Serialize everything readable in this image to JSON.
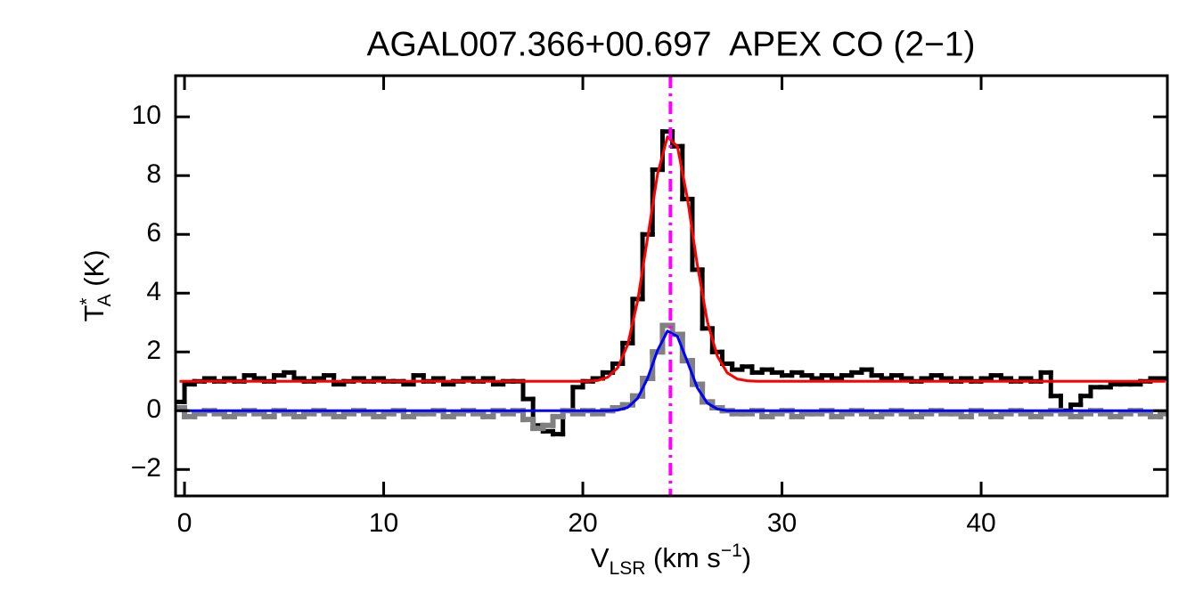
{
  "chart_data": {
    "type": "line",
    "title": "AGAL007.366+00.697  APEX CO (2−1)",
    "xlabel": {
      "main": "V",
      "sub": "LSR",
      "unit": " (km s",
      "sup": "−1",
      "close": ")"
    },
    "ylabel": {
      "main": "T",
      "sup": "*",
      "sub": "A",
      "unit": " (K)"
    },
    "xlim": [
      -0.45,
      49.35
    ],
    "ylim": [
      -2.9,
      11.4
    ],
    "xticks": [
      0,
      10,
      20,
      30,
      40
    ],
    "yticks": [
      {
        "value": -2,
        "label": "−2"
      },
      0,
      2,
      4,
      6,
      8,
      10
    ],
    "vline": {
      "x": 24.4,
      "color": "#ff00ff"
    },
    "x": [
      -0.25,
      0.25,
      0.75,
      1.25,
      1.75,
      2.25,
      2.75,
      3.25,
      3.75,
      4.25,
      4.75,
      5.25,
      5.75,
      6.25,
      6.75,
      7.25,
      7.75,
      8.25,
      8.75,
      9.25,
      9.75,
      10.25,
      10.75,
      11.25,
      11.75,
      12.25,
      12.75,
      13.25,
      13.75,
      14.25,
      14.75,
      15.25,
      15.75,
      16.25,
      16.75,
      17.25,
      17.75,
      18.25,
      18.75,
      19.25,
      19.75,
      20.25,
      20.75,
      21.25,
      21.75,
      22.25,
      22.75,
      23.25,
      23.75,
      24.25,
      24.75,
      25.25,
      25.75,
      26.25,
      26.75,
      27.25,
      27.75,
      28.25,
      28.75,
      29.25,
      29.75,
      30.25,
      30.75,
      31.25,
      31.75,
      32.25,
      32.75,
      33.25,
      33.75,
      34.25,
      34.75,
      35.25,
      35.75,
      36.25,
      36.75,
      37.25,
      37.75,
      38.25,
      38.75,
      39.25,
      39.75,
      40.25,
      40.75,
      41.25,
      41.75,
      42.25,
      42.75,
      43.25,
      43.75,
      44.25,
      44.75,
      45.25,
      45.75,
      46.25,
      46.75,
      47.25,
      47.75,
      48.25,
      48.75,
      49.25
    ],
    "series": [
      {
        "color": "#000000",
        "drawstyle": "steps-mid",
        "width": 5,
        "values": [
          0.3,
          0.9,
          1.0,
          1.1,
          1.0,
          1.1,
          1.0,
          1.2,
          1.1,
          1.0,
          1.2,
          1.3,
          1.1,
          1.0,
          1.1,
          1.2,
          0.9,
          1.0,
          1.1,
          1.0,
          1.1,
          1.0,
          1.0,
          0.9,
          1.2,
          1.0,
          1.1,
          0.9,
          1.0,
          1.1,
          1.0,
          1.1,
          0.9,
          1.0,
          1.0,
          0.4,
          -0.5,
          -0.7,
          -0.8,
          0.0,
          0.8,
          1.0,
          1.1,
          1.3,
          1.6,
          2.3,
          3.8,
          6.0,
          8.2,
          9.5,
          9.0,
          7.2,
          4.8,
          2.8,
          2.0,
          1.6,
          1.4,
          1.5,
          1.3,
          1.4,
          1.3,
          1.2,
          1.3,
          1.2,
          1.1,
          1.2,
          1.1,
          1.2,
          1.3,
          1.4,
          1.2,
          1.1,
          1.2,
          1.1,
          1.0,
          1.1,
          1.2,
          1.1,
          1.0,
          1.1,
          1.0,
          1.1,
          1.2,
          1.1,
          1.0,
          1.1,
          1.0,
          1.3,
          0.5,
          0.0,
          0.2,
          0.5,
          0.8,
          0.8,
          0.9,
          0.9,
          0.9,
          1.0,
          1.1,
          1.1
        ]
      },
      {
        "color": "#808080",
        "drawstyle": "steps-mid",
        "width": 6,
        "values": [
          0.1,
          -0.2,
          -0.1,
          0.0,
          -0.1,
          -0.2,
          -0.1,
          0.0,
          -0.1,
          -0.2,
          0.0,
          -0.1,
          -0.2,
          -0.1,
          0.0,
          -0.1,
          -0.2,
          -0.1,
          0.0,
          -0.1,
          -0.2,
          -0.1,
          0.0,
          -0.2,
          -0.1,
          -0.1,
          0.0,
          -0.2,
          -0.1,
          0.0,
          -0.1,
          -0.2,
          0.0,
          -0.1,
          0.0,
          -0.3,
          -0.6,
          -0.5,
          -0.2,
          0.0,
          -0.1,
          0.0,
          -0.1,
          0.0,
          0.1,
          0.2,
          0.5,
          1.1,
          2.0,
          2.9,
          2.6,
          1.7,
          0.9,
          0.3,
          0.1,
          0.0,
          -0.1,
          -0.1,
          0.0,
          -0.2,
          -0.1,
          0.0,
          -0.2,
          -0.1,
          -0.1,
          0.0,
          -0.2,
          -0.1,
          0.0,
          -0.1,
          -0.2,
          -0.1,
          0.0,
          -0.1,
          -0.2,
          -0.1,
          0.0,
          -0.1,
          -0.1,
          -0.2,
          0.0,
          -0.1,
          -0.2,
          -0.1,
          0.0,
          -0.1,
          -0.2,
          -0.1,
          0.0,
          -0.1,
          -0.2,
          -0.1,
          0.0,
          -0.1,
          -0.2,
          -0.1,
          0.0,
          -0.1,
          -0.2,
          -0.1
        ]
      },
      {
        "color": "#ff0000",
        "drawstyle": "default",
        "width": 3,
        "values": [
          1,
          1,
          1,
          1,
          1,
          1,
          1,
          1,
          1,
          1,
          1,
          1,
          1,
          1,
          1,
          1,
          1,
          1,
          1,
          1,
          1,
          1,
          1,
          1,
          1,
          1,
          1,
          1,
          1,
          1,
          1,
          1,
          1,
          1,
          1,
          1,
          1,
          1,
          1,
          1,
          1,
          1,
          1.03,
          1.14,
          1.46,
          2.24,
          3.73,
          5.87,
          8.05,
          9.32,
          8.99,
          7.23,
          4.96,
          3.04,
          1.86,
          1.29,
          1.08,
          1.02,
          1,
          1,
          1,
          1,
          1,
          1,
          1,
          1,
          1,
          1,
          1,
          1,
          1,
          1,
          1,
          1,
          1,
          1,
          1,
          1,
          1,
          1,
          1,
          1,
          1,
          1,
          1,
          1,
          1,
          1,
          1,
          1,
          1,
          1,
          1,
          1,
          1,
          1,
          1,
          1,
          1,
          1
        ]
      },
      {
        "color": "#0000ff",
        "drawstyle": "default",
        "width": 3,
        "values": [
          0,
          0,
          0,
          0,
          0,
          0,
          0,
          0,
          0,
          0,
          0,
          0,
          0,
          0,
          0,
          0,
          0,
          0,
          0,
          0,
          0,
          0,
          0,
          0,
          0,
          0,
          0,
          0,
          0,
          0,
          0,
          0,
          0,
          0,
          0,
          0,
          0,
          0,
          0,
          0,
          0,
          0,
          0,
          0,
          0.02,
          0.11,
          0.42,
          1.1,
          2.05,
          2.71,
          2.53,
          1.67,
          0.78,
          0.26,
          0.06,
          0,
          0,
          0,
          0,
          0,
          0,
          0,
          0,
          0,
          0,
          0,
          0,
          0,
          0,
          0,
          0,
          0,
          0,
          0,
          0,
          0,
          0,
          0,
          0,
          0,
          0,
          0,
          0,
          0,
          0,
          0,
          0,
          0,
          0,
          0,
          0,
          0,
          0,
          0,
          0,
          0,
          0,
          0,
          0,
          0
        ]
      }
    ]
  }
}
